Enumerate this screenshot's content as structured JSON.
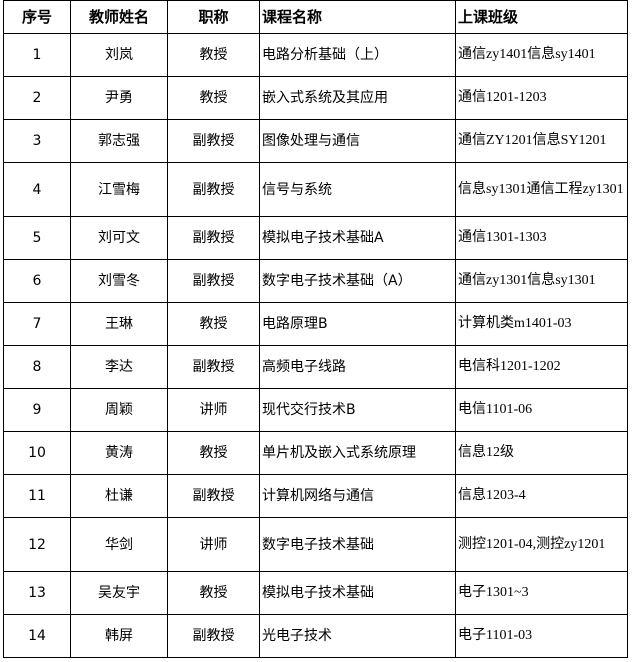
{
  "headers": [
    "序号",
    "教师姓名",
    "职称",
    "课程名称",
    "上课班级"
  ],
  "rows": [
    [
      "1",
      "刘岚",
      "教授",
      "电路分析基础（上）",
      "通信zy1401信息sy1401"
    ],
    [
      "2",
      "尹勇",
      "教授",
      "嵌入式系统及其应用",
      "通信1201-1203"
    ],
    [
      "3",
      "郭志强",
      "副教授",
      "图像处理与通信",
      "通信ZY1201信息SY1201"
    ],
    [
      "4",
      "江雪梅",
      "副教授",
      "信号与系统",
      "信息sy1301通信工程zy1301"
    ],
    [
      "5",
      "刘可文",
      "副教授",
      "模拟电子技术基础A",
      "通信1301-1303"
    ],
    [
      "6",
      "刘雪冬",
      "副教授",
      "数字电子技术基础（A）",
      "通信zy1301信息sy1301"
    ],
    [
      "7",
      "王琳",
      "教授",
      "电路原理B",
      "计算机类m1401-03"
    ],
    [
      "8",
      "李达",
      "副教授",
      "高频电子线路",
      "电信科1201-1202"
    ],
    [
      "9",
      "周颖",
      "讲师",
      "现代交行技术B",
      "电信1101-06"
    ],
    [
      "10",
      "黄涛",
      "教授",
      "单片机及嵌入式系统原理",
      "信息12级"
    ],
    [
      "11",
      "杜谦",
      "副教授",
      "计算机网络与通信",
      "信息1203-4"
    ],
    [
      "12",
      "华剑",
      "讲师",
      "数字电子技术基础",
      "测控1201-04,测控zy1201"
    ],
    [
      "13",
      "吴友宇",
      "教授",
      "模拟电子技术基础",
      "电子1301~3"
    ],
    [
      "14",
      "韩屏",
      "副教授",
      "光电子技术",
      "电子1101-03"
    ]
  ]
}
